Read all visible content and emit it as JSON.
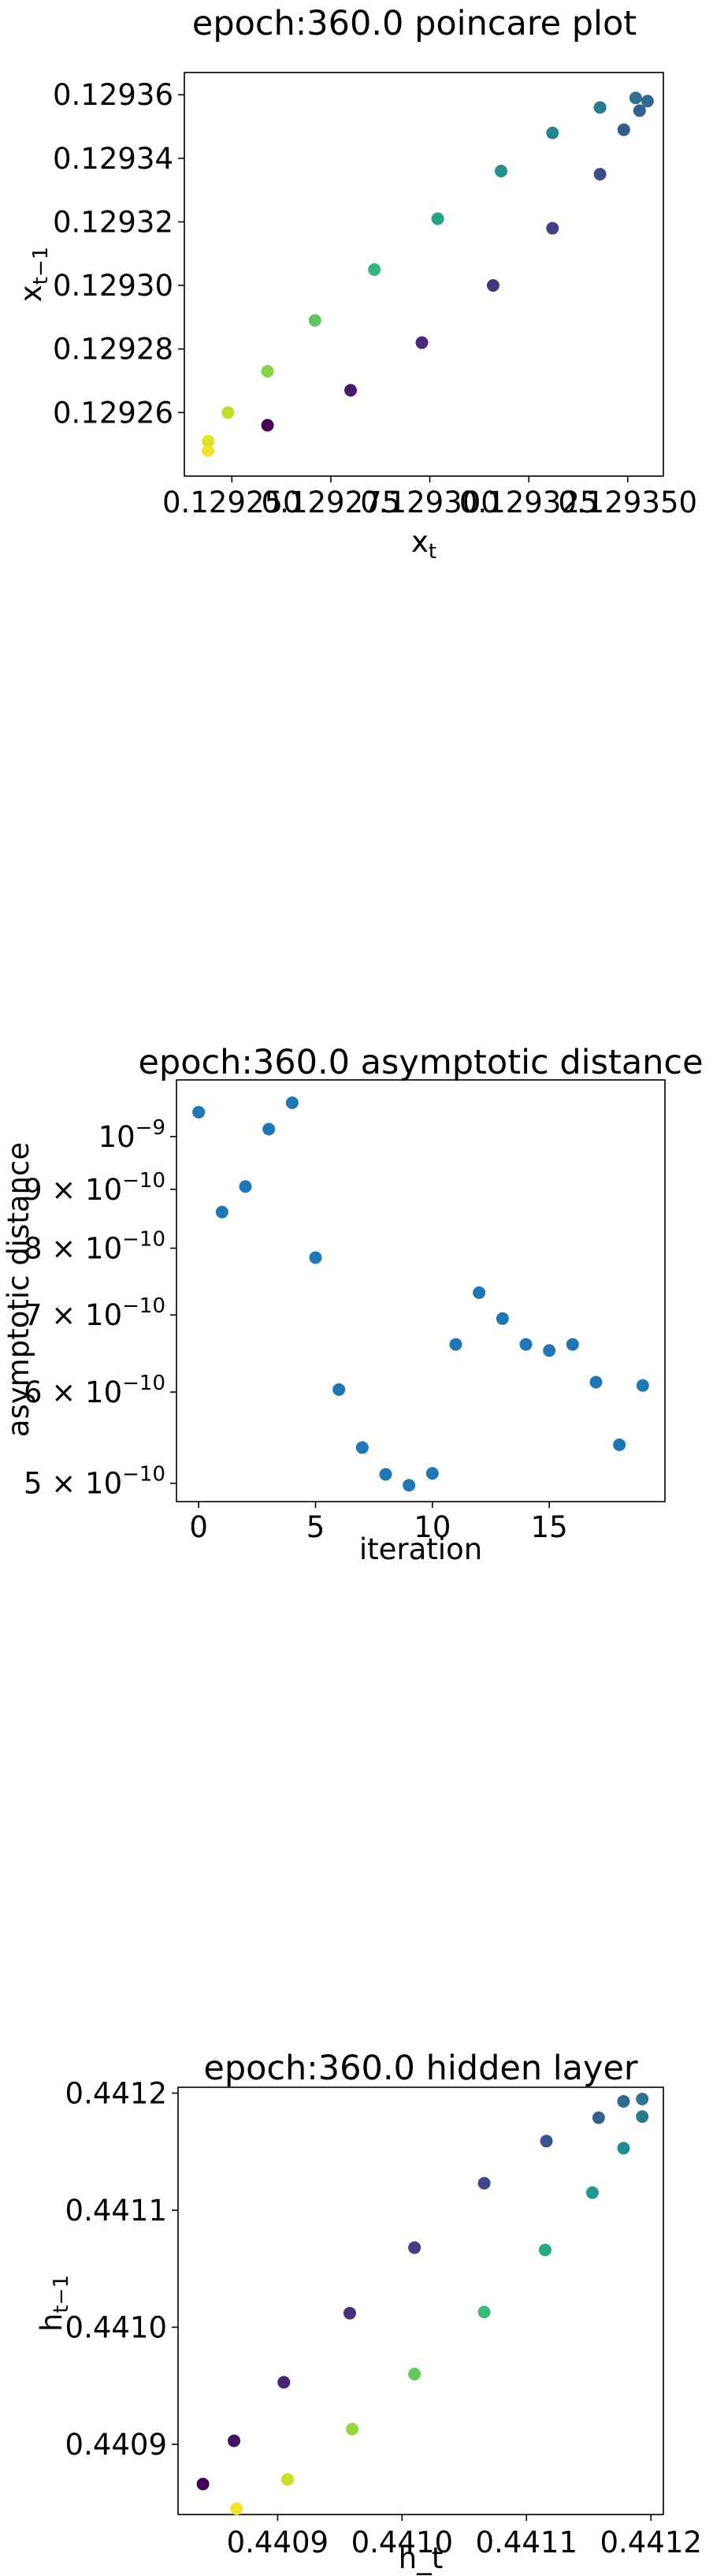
{
  "chart_data": [
    {
      "type": "scatter",
      "title": "epoch:360.0 poincare plot",
      "xlabel": "x_t",
      "ylabel": "x_{t-1}",
      "xlim": [
        0.129238,
        0.129359
      ],
      "ylim": [
        0.12924,
        0.129367
      ],
      "x_ticks": [
        {
          "value": 0.12925,
          "label": "0.129250"
        },
        {
          "value": 0.129275,
          "label": "0.129275"
        },
        {
          "value": 0.1293,
          "label": "0.129300"
        },
        {
          "value": 0.129325,
          "label": "0.129325"
        },
        {
          "value": 0.12935,
          "label": "0.129350"
        }
      ],
      "y_ticks": [
        {
          "value": 0.12926,
          "label": "0.12926"
        },
        {
          "value": 0.12928,
          "label": "0.12928"
        },
        {
          "value": 0.1293,
          "label": "0.12930"
        },
        {
          "value": 0.12932,
          "label": "0.12932"
        },
        {
          "value": 0.12934,
          "label": "0.12934"
        },
        {
          "value": 0.12936,
          "label": "0.12936"
        }
      ],
      "colormap": "viridis",
      "points": [
        {
          "x": 0.129244,
          "y": 0.129248,
          "c": 0.98
        },
        {
          "x": 0.129244,
          "y": 0.129251,
          "c": 0.95
        },
        {
          "x": 0.129249,
          "y": 0.12926,
          "c": 0.9
        },
        {
          "x": 0.129259,
          "y": 0.129273,
          "c": 0.82
        },
        {
          "x": 0.129271,
          "y": 0.129289,
          "c": 0.74
        },
        {
          "x": 0.129286,
          "y": 0.129305,
          "c": 0.66
        },
        {
          "x": 0.129302,
          "y": 0.129321,
          "c": 0.58
        },
        {
          "x": 0.129318,
          "y": 0.129336,
          "c": 0.5
        },
        {
          "x": 0.129331,
          "y": 0.129348,
          "c": 0.46
        },
        {
          "x": 0.129343,
          "y": 0.129356,
          "c": 0.42
        },
        {
          "x": 0.129352,
          "y": 0.129359,
          "c": 0.38
        },
        {
          "x": 0.129355,
          "y": 0.129358,
          "c": 0.34
        },
        {
          "x": 0.129353,
          "y": 0.129355,
          "c": 0.31
        },
        {
          "x": 0.129349,
          "y": 0.129349,
          "c": 0.28
        },
        {
          "x": 0.129343,
          "y": 0.129335,
          "c": 0.24
        },
        {
          "x": 0.129331,
          "y": 0.129318,
          "c": 0.2
        },
        {
          "x": 0.129316,
          "y": 0.1293,
          "c": 0.16
        },
        {
          "x": 0.129298,
          "y": 0.129282,
          "c": 0.12
        },
        {
          "x": 0.12928,
          "y": 0.129267,
          "c": 0.07
        },
        {
          "x": 0.129259,
          "y": 0.129256,
          "c": 0.0
        }
      ]
    },
    {
      "type": "scatter",
      "title": "epoch:360.0 asymptotic distance",
      "xlabel": "iteration",
      "ylabel": "asymptotic distance",
      "yscale": "log",
      "xlim": [
        -0.95,
        19.95
      ],
      "ylim": [
        4.82e-10,
        1.12e-09
      ],
      "x_ticks": [
        {
          "value": 0,
          "label": "0"
        },
        {
          "value": 5,
          "label": "5"
        },
        {
          "value": 10,
          "label": "10"
        },
        {
          "value": 15,
          "label": "15"
        }
      ],
      "y_ticks": [
        {
          "value": 1e-09,
          "mantissa": "10",
          "exponent": "−9"
        },
        {
          "value": 9e-10,
          "mantissa": "9 × 10",
          "exponent": "−10"
        },
        {
          "value": 8e-10,
          "mantissa": "8 × 10",
          "exponent": "−10"
        },
        {
          "value": 7e-10,
          "mantissa": "7 × 10",
          "exponent": "−10"
        },
        {
          "value": 6e-10,
          "mantissa": "6 × 10",
          "exponent": "−10"
        },
        {
          "value": 5e-10,
          "mantissa": "5 × 10",
          "exponent": "−10"
        }
      ],
      "point_color": "#1f77b4",
      "x": [
        0,
        1,
        2,
        3,
        4,
        5,
        6,
        7,
        8,
        9,
        10,
        11,
        12,
        13,
        14,
        15,
        16,
        17,
        18,
        19
      ],
      "y": [
        1.05e-09,
        8.6e-10,
        9.05e-10,
        1.015e-09,
        1.07e-09,
        7.85e-10,
        6.03e-10,
        5.37e-10,
        5.09e-10,
        4.98e-10,
        5.1e-10,
        6.6e-10,
        7.32e-10,
        6.95e-10,
        6.6e-10,
        6.52e-10,
        6.6e-10,
        6.12e-10,
        5.4e-10,
        6.08e-10
      ]
    },
    {
      "type": "scatter",
      "title": "epoch:360.0 hidden layer",
      "xlabel": "h_t",
      "ylabel": "h_{t-1}",
      "xlim": [
        0.44082,
        0.44121
      ],
      "ylim": [
        0.44084,
        0.441205
      ],
      "x_ticks": [
        {
          "value": 0.4409,
          "label": "0.4409"
        },
        {
          "value": 0.441,
          "label": "0.4410"
        },
        {
          "value": 0.4411,
          "label": "0.4411"
        },
        {
          "value": 0.4412,
          "label": "0.4412"
        }
      ],
      "y_ticks": [
        {
          "value": 0.4409,
          "label": "0.4409"
        },
        {
          "value": 0.441,
          "label": "0.4410"
        },
        {
          "value": 0.4411,
          "label": "0.4411"
        },
        {
          "value": 0.4412,
          "label": "0.4412"
        }
      ],
      "colormap": "viridis",
      "points": [
        {
          "x": 0.440867,
          "y": 0.440845,
          "c": 0.98
        },
        {
          "x": 0.440908,
          "y": 0.44087,
          "c": 0.92
        },
        {
          "x": 0.44096,
          "y": 0.440913,
          "c": 0.84
        },
        {
          "x": 0.44101,
          "y": 0.44096,
          "c": 0.76
        },
        {
          "x": 0.441066,
          "y": 0.441013,
          "c": 0.68
        },
        {
          "x": 0.441115,
          "y": 0.441066,
          "c": 0.6
        },
        {
          "x": 0.441153,
          "y": 0.441115,
          "c": 0.54
        },
        {
          "x": 0.441178,
          "y": 0.441153,
          "c": 0.48
        },
        {
          "x": 0.441193,
          "y": 0.44118,
          "c": 0.42
        },
        {
          "x": 0.441193,
          "y": 0.441195,
          "c": 0.38
        },
        {
          "x": 0.441178,
          "y": 0.441193,
          "c": 0.34
        },
        {
          "x": 0.441158,
          "y": 0.441179,
          "c": 0.3
        },
        {
          "x": 0.441116,
          "y": 0.441159,
          "c": 0.26
        },
        {
          "x": 0.441066,
          "y": 0.441123,
          "c": 0.22
        },
        {
          "x": 0.44101,
          "y": 0.441068,
          "c": 0.18
        },
        {
          "x": 0.440958,
          "y": 0.441012,
          "c": 0.14
        },
        {
          "x": 0.440905,
          "y": 0.440953,
          "c": 0.1
        },
        {
          "x": 0.440865,
          "y": 0.440903,
          "c": 0.05
        },
        {
          "x": 0.44084,
          "y": 0.440866,
          "c": 0.0
        }
      ]
    }
  ]
}
